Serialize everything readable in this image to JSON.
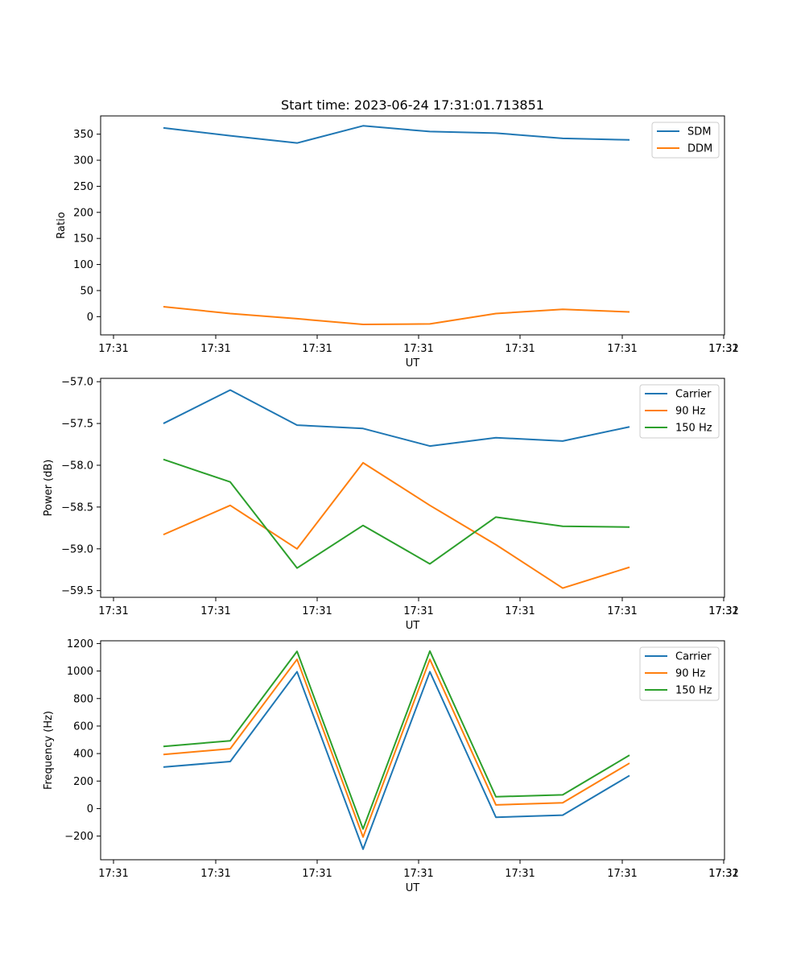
{
  "chart_data": [
    {
      "type": "line",
      "title": "Start time: 2023-06-24 17:31:01.713851",
      "xlabel": "UT",
      "ylabel": "Ratio",
      "x_ticks": [
        "17:31",
        "17:31",
        "17:31",
        "17:31",
        "17:31",
        "17:31",
        "17:31"
      ],
      "x_tick_extra": "17:32",
      "ylim": [
        -35,
        385
      ],
      "y_ticks": [
        0,
        50,
        100,
        150,
        200,
        250,
        300,
        350
      ],
      "legend": "top-right",
      "series": [
        {
          "name": "SDM",
          "color": "#1f77b4",
          "values": [
            362,
            347,
            333,
            366,
            355,
            352,
            342,
            339
          ]
        },
        {
          "name": "DDM",
          "color": "#ff7f0e",
          "values": [
            19,
            6,
            -4,
            -15,
            -14,
            6,
            14,
            9
          ]
        }
      ]
    },
    {
      "type": "line",
      "title": "",
      "xlabel": "UT",
      "ylabel": "Power (dB)",
      "x_ticks": [
        "17:31",
        "17:31",
        "17:31",
        "17:31",
        "17:31",
        "17:31",
        "17:31"
      ],
      "x_tick_extra": "17:32",
      "ylim": [
        -59.58,
        -56.96
      ],
      "y_ticks": [
        -57.0,
        -57.5,
        -58.0,
        -58.5,
        -59.0,
        -59.5
      ],
      "legend": "top-right",
      "series": [
        {
          "name": "Carrier",
          "color": "#1f77b4",
          "values": [
            -57.5,
            -57.1,
            -57.52,
            -57.56,
            -57.77,
            -57.67,
            -57.71,
            -57.54
          ]
        },
        {
          "name": "90 Hz",
          "color": "#ff7f0e",
          "values": [
            -58.83,
            -58.48,
            -59.0,
            -57.97,
            -58.48,
            -58.95,
            -59.47,
            -59.22
          ]
        },
        {
          "name": "150 Hz",
          "color": "#2ca02c",
          "values": [
            -57.93,
            -58.2,
            -59.23,
            -58.72,
            -59.18,
            -58.62,
            -58.73,
            -58.74
          ]
        }
      ]
    },
    {
      "type": "line",
      "title": "",
      "xlabel": "UT",
      "ylabel": "Frequency (Hz)",
      "x_ticks": [
        "17:31",
        "17:31",
        "17:31",
        "17:31",
        "17:31",
        "17:31",
        "17:31"
      ],
      "x_tick_extra": "17:32",
      "ylim": [
        -372,
        1220
      ],
      "y_ticks": [
        -200,
        0,
        200,
        400,
        600,
        800,
        1000,
        1200
      ],
      "legend": "top-right",
      "series": [
        {
          "name": "Carrier",
          "color": "#1f77b4",
          "values": [
            302,
            342,
            995,
            -295,
            995,
            -63,
            -48,
            240
          ]
        },
        {
          "name": "90 Hz",
          "color": "#ff7f0e",
          "values": [
            393,
            435,
            1085,
            -207,
            1085,
            27,
            42,
            330
          ]
        },
        {
          "name": "150 Hz",
          "color": "#2ca02c",
          "values": [
            452,
            493,
            1143,
            -148,
            1145,
            86,
            100,
            388
          ]
        }
      ]
    }
  ]
}
